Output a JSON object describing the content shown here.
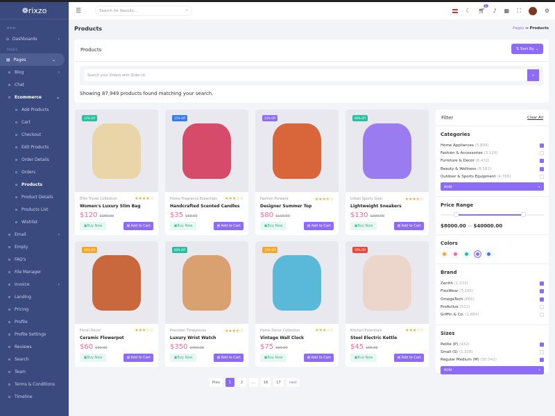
{
  "brand": "rixzo",
  "sidebar": {
    "main_label": "MAIN",
    "pages_label": "PAGES",
    "dashboards": "Dashboards",
    "items": [
      {
        "label": "Pages",
        "level": 0,
        "chev": "⌄",
        "active": true
      },
      {
        "label": "Blog",
        "level": 1,
        "chev": "›"
      },
      {
        "label": "Chat",
        "level": 1
      },
      {
        "label": "Ecommerce",
        "level": 1,
        "chev": "⌄",
        "cur": true
      },
      {
        "label": "Add Products",
        "level": 2
      },
      {
        "label": "Cart",
        "level": 2
      },
      {
        "label": "Checkout",
        "level": 2
      },
      {
        "label": "Edit Products",
        "level": 2
      },
      {
        "label": "Order Details",
        "level": 2
      },
      {
        "label": "Orders",
        "level": 2
      },
      {
        "label": "Products",
        "level": 2,
        "cur": true
      },
      {
        "label": "Product Details",
        "level": 2
      },
      {
        "label": "Products List",
        "level": 2
      },
      {
        "label": "Wishlist",
        "level": 2
      },
      {
        "label": "Email",
        "level": 1,
        "chev": "›"
      },
      {
        "label": "Empty",
        "level": 1
      },
      {
        "label": "FAQ's",
        "level": 1
      },
      {
        "label": "File Manager",
        "level": 1
      },
      {
        "label": "Invoice",
        "level": 1,
        "chev": "›"
      },
      {
        "label": "Landing",
        "level": 1
      },
      {
        "label": "Pricing",
        "level": 1
      },
      {
        "label": "Profile",
        "level": 1
      },
      {
        "label": "Profile Settings",
        "level": 1
      },
      {
        "label": "Reviews",
        "level": 1
      },
      {
        "label": "Search",
        "level": 1
      },
      {
        "label": "Team",
        "level": 1
      },
      {
        "label": "Terms & Conditions",
        "level": 1
      },
      {
        "label": "Timeline",
        "level": 1
      }
    ]
  },
  "header": {
    "search_placeholder": "Search for Results...",
    "cart_count": "5"
  },
  "page": {
    "title": "Products",
    "breadcrumb": [
      "Pages",
      "Products"
    ]
  },
  "products_card": {
    "title": "Products",
    "sort_label": "Sort By",
    "search_placeholder": "Search your Orders with Order Id..",
    "showing": "Showing 87,949 products found matching your search."
  },
  "products": [
    {
      "badge": "12% Off",
      "badge_color": "#26bfa0",
      "category": "Elite Travel Collection",
      "name": "Women's Luxury Slim Bag",
      "price": "$120",
      "old_price": "$180.00",
      "rating": 4,
      "image_color": "#ead5a8"
    },
    {
      "badge": "15% Off",
      "badge_color": "#2f7bf5",
      "category": "Home Fragrance Essentials",
      "name": "Handcrafted Scented Candles",
      "price": "$35",
      "old_price": "$50.00",
      "rating": 3,
      "image_color": "#d64a6a"
    },
    {
      "badge": "24% Off",
      "badge_color": "#8c6cf7",
      "category": "Fashion Forward",
      "name": "Designer Summer Top",
      "price": "$80",
      "old_price": "$110.00",
      "rating": 3.5,
      "image_color": "#d9653a"
    },
    {
      "badge": "60% Off",
      "badge_color": "#26bfa0",
      "category": "Urban Sports Gear",
      "name": "Lightweight Sneakers",
      "price": "$130",
      "old_price": "$200.00",
      "rating": 3.5,
      "image_color": "#9a7cf0"
    },
    {
      "badge": "10% Off",
      "badge_color": "#f5a623",
      "category": "Floral Decor",
      "name": "Ceramic Flowerpot",
      "price": "$60",
      "old_price": "$90.00",
      "rating": 3,
      "image_color": "#c8683c"
    },
    {
      "badge": "60% Off",
      "badge_color": "#26bfa0",
      "category": "Precision Timepieces",
      "name": "Luxury Wrist Watch",
      "price": "$350",
      "old_price": "$450.00",
      "rating": 3.5,
      "image_color": "#d9a070"
    },
    {
      "badge": "15% Off",
      "badge_color": "#f5a623",
      "category": "Home Decor Collection",
      "name": "Vintage Wall Clock",
      "price": "$75",
      "old_price": "$90.00",
      "rating": 3,
      "image_color": "#5ab8d8"
    },
    {
      "badge": "50% Off",
      "badge_color": "#f04438",
      "category": "Kitchen Essentials",
      "name": "Steel Electric Kettle",
      "price": "$45",
      "old_price": "$65.00",
      "rating": 3,
      "image_color": "#ecd6cc"
    }
  ],
  "buttons": {
    "buy": "Buy Now",
    "add": "Add to Cart"
  },
  "filter": {
    "title": "Filter",
    "clear": "Clear All",
    "more": "MORE",
    "categories": {
      "title": "Categories",
      "items": [
        {
          "label": "Home Appliances",
          "count": "(5,894)",
          "checked": true
        },
        {
          "label": "Fashion & Accessories",
          "count": "(3,120)",
          "checked": false
        },
        {
          "label": "Furniture & Decor",
          "count": "(6,432)",
          "checked": true
        },
        {
          "label": "Beauty & Wellness",
          "count": "(8,583)",
          "checked": true
        },
        {
          "label": "Outdoor & Sports Equipment",
          "count": "(4,786)",
          "checked": false
        }
      ]
    },
    "price": {
      "title": "Price Range",
      "min": "$8000.00",
      "max": "$40000.00",
      "sep": "--",
      "low_fraction": 0.15,
      "high_fraction": 0.8
    },
    "colors": {
      "title": "Colors",
      "items": [
        "#f5a623",
        "#f06a9b",
        "#26bfa0",
        "#8c6cf7",
        "#2f7bf5"
      ],
      "selected": 3
    },
    "brand": {
      "title": "Brand",
      "items": [
        {
          "label": "Zenith",
          "count": "(1,233)",
          "checked": true
        },
        {
          "label": "FlexWear",
          "count": "(3,145)",
          "checked": true
        },
        {
          "label": "OmegaTech",
          "count": "(866)",
          "checked": true
        },
        {
          "label": "ProActive",
          "count": "(512)",
          "checked": false
        },
        {
          "label": "Griffin & Co.",
          "count": "(1,884)",
          "checked": false
        }
      ]
    },
    "sizes": {
      "title": "Sizes",
      "items": [
        {
          "label": "Petite (P)",
          "count": "(432)",
          "checked": true
        },
        {
          "label": "Small (S)",
          "count": "(1,318)",
          "checked": false
        },
        {
          "label": "Regular Medium (M)",
          "count": "(10,042)",
          "checked": true
        }
      ]
    }
  },
  "pagination": {
    "prev": "Prev",
    "pages": [
      "1",
      "2",
      "...",
      "16",
      "17"
    ],
    "current": "1",
    "next": "next"
  }
}
